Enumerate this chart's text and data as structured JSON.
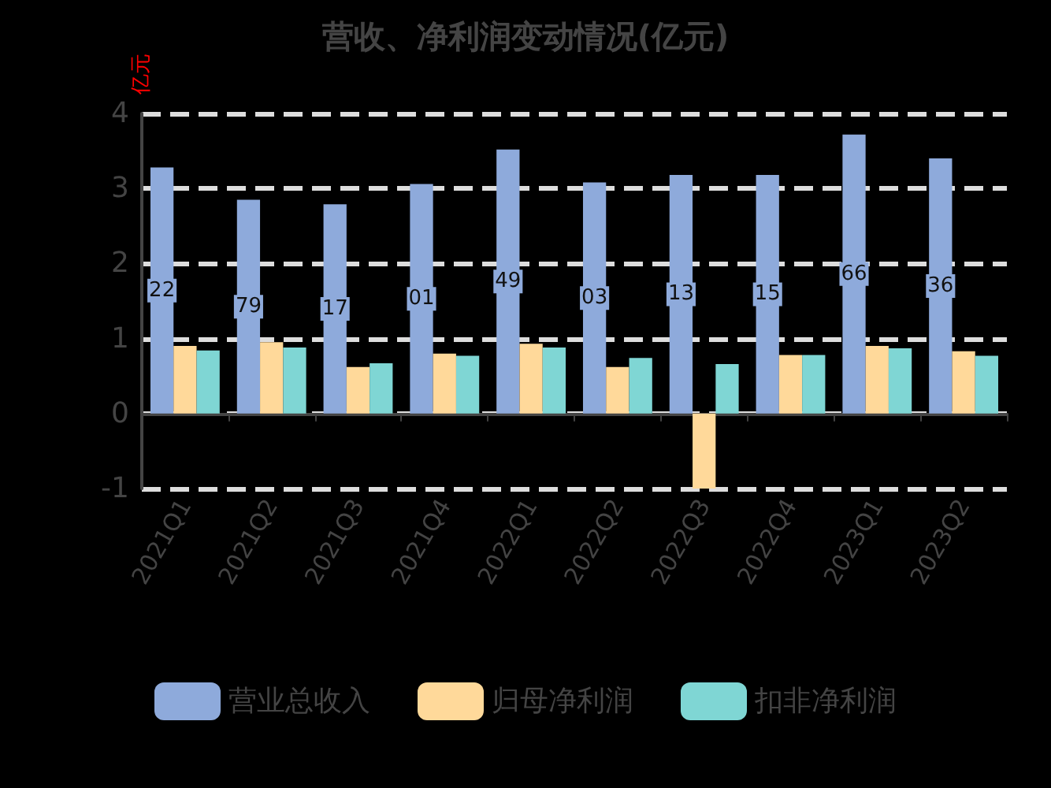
{
  "chart_data": {
    "type": "bar",
    "title": "营收、净利润变动情况(亿元)",
    "ylabel": "亿元",
    "categories": [
      "2021Q1",
      "2021Q2",
      "2021Q3",
      "2021Q4",
      "2022Q1",
      "2022Q2",
      "2022Q3",
      "2022Q4",
      "2023Q1",
      "2023Q2"
    ],
    "series": [
      {
        "name": "营业总收入",
        "color": "#8eaadb",
        "values": [
          3.28,
          2.85,
          2.79,
          3.06,
          3.52,
          3.08,
          3.18,
          3.18,
          3.72,
          3.4
        ]
      },
      {
        "name": "归母净利润",
        "color": "#ffd99a",
        "values": [
          0.9,
          0.95,
          0.62,
          0.8,
          0.93,
          0.62,
          -1.0,
          0.78,
          0.9,
          0.83
        ]
      },
      {
        "name": "扣非净利润",
        "color": "#7fd6d4",
        "values": [
          0.84,
          0.88,
          0.67,
          0.77,
          0.88,
          0.74,
          0.66,
          0.78,
          0.87,
          0.77
        ]
      }
    ],
    "annotations": [
      "22",
      "79",
      "17",
      "01",
      "49",
      "03",
      "13",
      "15",
      "66",
      "36"
    ],
    "ylim": [
      -1,
      4
    ],
    "yticks": [
      -1,
      0,
      1,
      2,
      3,
      4
    ],
    "grid": "y",
    "legend": "bottom"
  }
}
